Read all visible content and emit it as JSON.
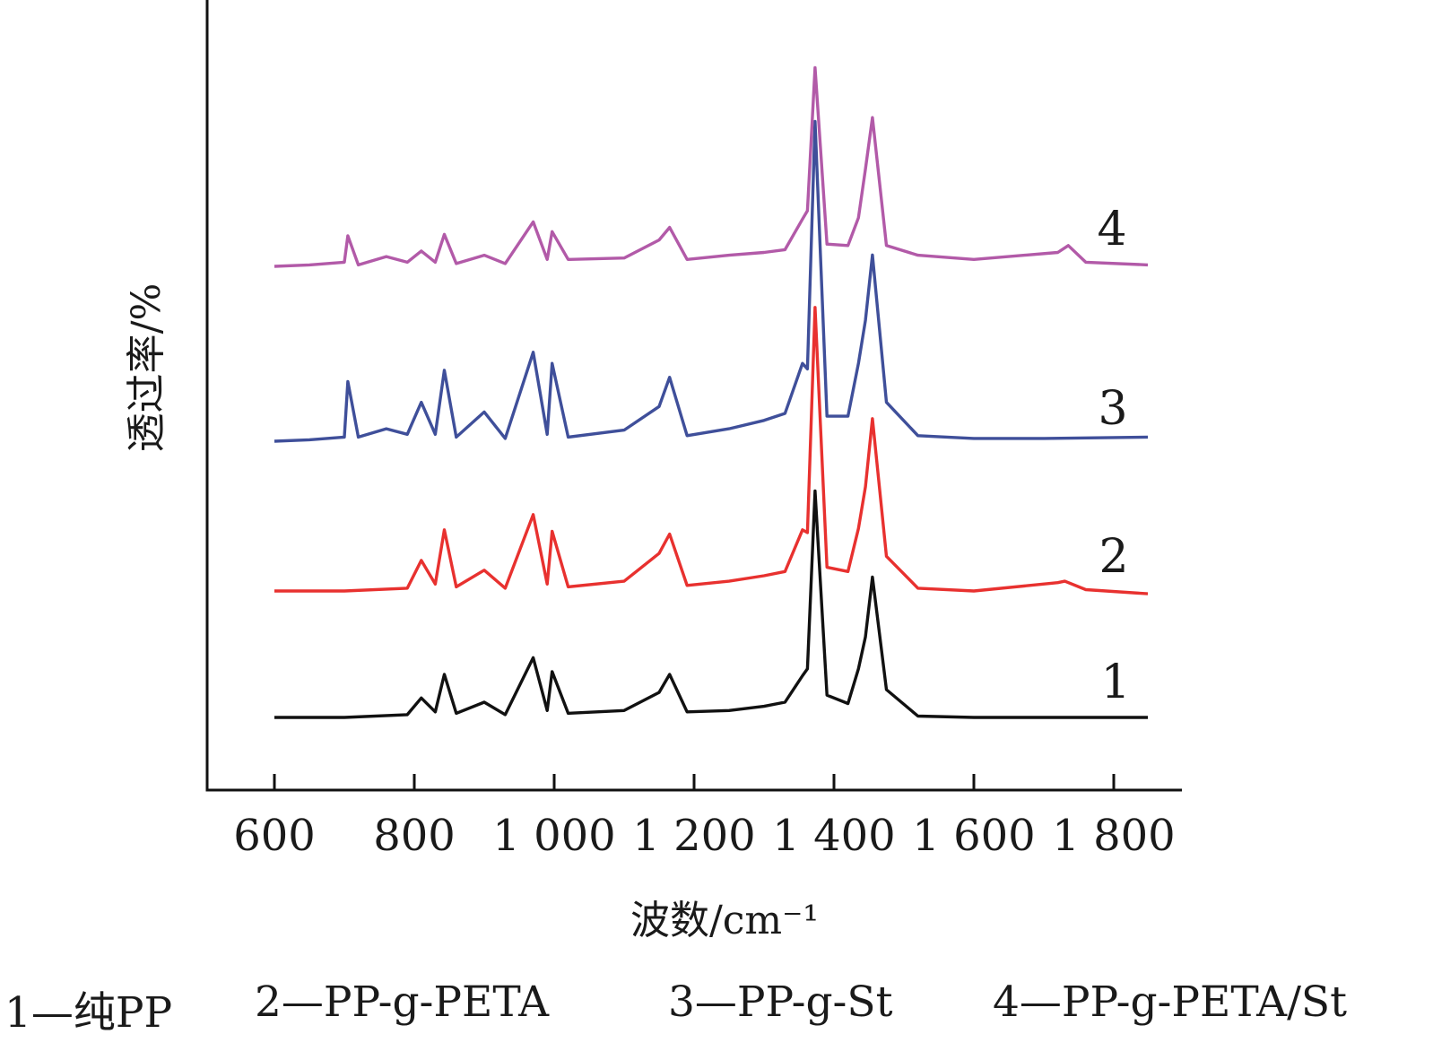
{
  "chart_data": {
    "type": "line",
    "title": "",
    "xlabel": "波数/cm⁻¹",
    "ylabel": "透过率/%",
    "xlim": [
      550,
      1840
    ],
    "x_ticks": [
      600,
      800,
      1000,
      1200,
      1400,
      1600,
      1800
    ],
    "x_tick_labels": [
      "600",
      "800",
      "1 000",
      "1 200",
      "1 400",
      "1 600",
      "1 800"
    ],
    "y_ticks_shown": false,
    "grid": false,
    "legend_position": "bottom",
    "legend": [
      {
        "label": "1—纯PP"
      },
      {
        "label": "2—PP-g-PETA"
      },
      {
        "label": "3—PP-g-St"
      },
      {
        "label": "4—PP-g-PETA/St"
      }
    ],
    "series": [
      {
        "name": "1",
        "color": "#111111",
        "x": [
          600,
          700,
          790,
          810,
          830,
          843,
          860,
          900,
          930,
          970,
          990,
          997,
          1020,
          1100,
          1150,
          1165,
          1190,
          1250,
          1300,
          1330,
          1355,
          1362,
          1373,
          1390,
          1420,
          1435,
          1445,
          1455,
          1475,
          1520,
          1600,
          1700,
          1850
        ],
        "y": [
          0,
          0,
          0.02,
          0.14,
          0.04,
          0.31,
          0.03,
          0.11,
          0.02,
          0.43,
          0.05,
          0.33,
          0.03,
          0.05,
          0.18,
          0.31,
          0.04,
          0.05,
          0.08,
          0.11,
          0.3,
          0.35,
          1.63,
          0.16,
          0.1,
          0.35,
          0.58,
          1.01,
          0.2,
          0.01,
          0.0,
          0.0,
          0.0
        ]
      },
      {
        "name": "2",
        "color": "#e8312f",
        "x": [
          600,
          700,
          790,
          810,
          830,
          843,
          860,
          900,
          930,
          970,
          990,
          997,
          1020,
          1100,
          1150,
          1165,
          1190,
          1250,
          1300,
          1330,
          1355,
          1362,
          1373,
          1390,
          1420,
          1435,
          1445,
          1455,
          1475,
          1520,
          1600,
          1720,
          1730,
          1760,
          1850
        ],
        "y": [
          0,
          0,
          0.02,
          0.22,
          0.05,
          0.44,
          0.03,
          0.15,
          0.02,
          0.55,
          0.05,
          0.43,
          0.03,
          0.07,
          0.27,
          0.41,
          0.04,
          0.07,
          0.11,
          0.14,
          0.44,
          0.42,
          2.04,
          0.17,
          0.14,
          0.45,
          0.75,
          1.24,
          0.25,
          0.02,
          0.0,
          0.06,
          0.07,
          0.01,
          -0.02
        ]
      },
      {
        "name": "3",
        "color": "#3f4f9a",
        "x": [
          600,
          650,
          700,
          705,
          720,
          760,
          790,
          810,
          830,
          843,
          860,
          900,
          930,
          970,
          990,
          997,
          1020,
          1100,
          1150,
          1165,
          1190,
          1250,
          1300,
          1330,
          1355,
          1362,
          1373,
          1390,
          1420,
          1435,
          1445,
          1455,
          1475,
          1520,
          1600,
          1700,
          1850
        ],
        "y": [
          0,
          0.01,
          0.03,
          0.43,
          0.03,
          0.09,
          0.05,
          0.28,
          0.05,
          0.51,
          0.03,
          0.21,
          0.02,
          0.64,
          0.05,
          0.56,
          0.03,
          0.08,
          0.25,
          0.46,
          0.04,
          0.09,
          0.15,
          0.2,
          0.56,
          0.52,
          2.3,
          0.18,
          0.18,
          0.56,
          0.87,
          1.34,
          0.28,
          0.04,
          0.02,
          0.02,
          0.03
        ]
      },
      {
        "name": "4",
        "color": "#b25aa8",
        "x": [
          600,
          650,
          700,
          705,
          720,
          760,
          790,
          810,
          830,
          843,
          860,
          900,
          930,
          970,
          990,
          997,
          1020,
          1100,
          1150,
          1165,
          1190,
          1250,
          1300,
          1330,
          1355,
          1362,
          1373,
          1390,
          1420,
          1435,
          1445,
          1455,
          1475,
          1520,
          1600,
          1720,
          1735,
          1760,
          1850
        ],
        "y": [
          0,
          0.01,
          0.03,
          0.22,
          0.01,
          0.07,
          0.03,
          0.11,
          0.03,
          0.23,
          0.02,
          0.08,
          0.02,
          0.32,
          0.05,
          0.25,
          0.05,
          0.06,
          0.19,
          0.28,
          0.05,
          0.08,
          0.1,
          0.12,
          0.34,
          0.4,
          1.43,
          0.16,
          0.15,
          0.35,
          0.7,
          1.07,
          0.15,
          0.08,
          0.05,
          0.1,
          0.15,
          0.03,
          0.01
        ]
      }
    ]
  }
}
